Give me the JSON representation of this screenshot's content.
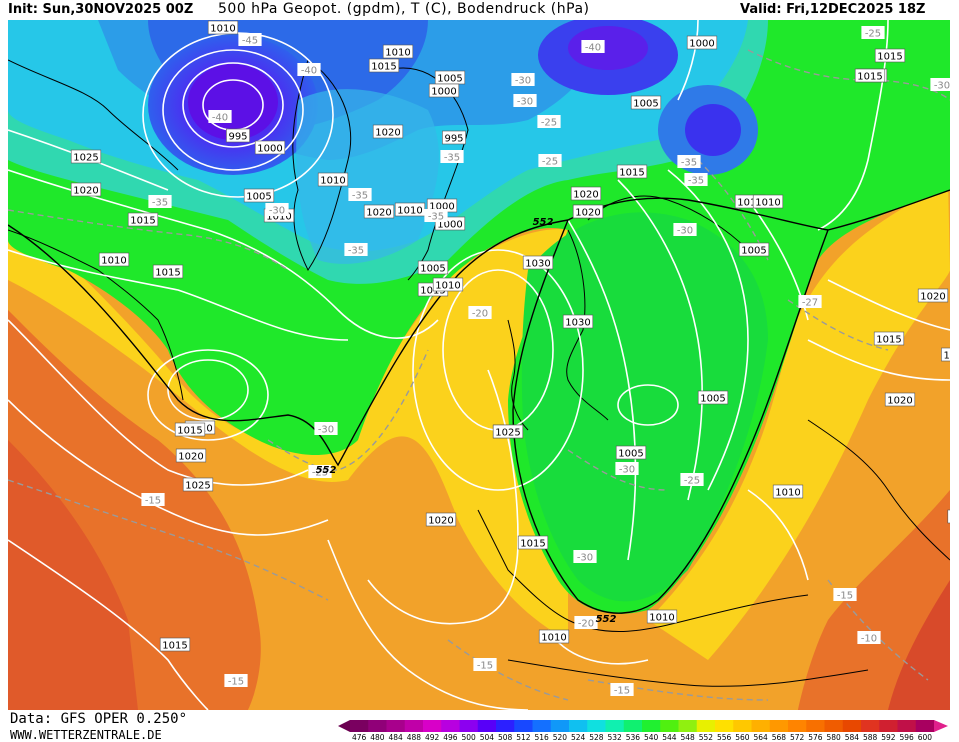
{
  "header": {
    "init": "Init: Sun,30NOV2025 00Z",
    "params": "500 hPa Geopot. (gpdm), T (C), Bodendruck (hPa)",
    "valid": "Valid: Fri,12DEC2025 18Z"
  },
  "footer": {
    "data_source": "Data: GFS OPER 0.250°",
    "website": "WWW.WETTERZENTRALE.DE"
  },
  "colors": {
    "ocean_orange": "#f2a22a",
    "deep_orange": "#e2622a",
    "yellow": "#fbd21c",
    "green": "#1fe82a",
    "cyan": "#26c7e8",
    "blue": "#2c7de8",
    "purple": "#7a28e0"
  },
  "legend": {
    "values": [
      "476",
      "480",
      "484",
      "488",
      "492",
      "496",
      "500",
      "504",
      "508",
      "512",
      "516",
      "520",
      "524",
      "528",
      "532",
      "536",
      "540",
      "544",
      "548",
      "552",
      "556",
      "560",
      "564",
      "568",
      "572",
      "576",
      "580",
      "584",
      "588",
      "592",
      "596",
      "600"
    ],
    "colors": [
      "#7a0060",
      "#900078",
      "#a8008c",
      "#c000a8",
      "#d800c8",
      "#b800e0",
      "#8c00f0",
      "#5800f8",
      "#2c20ff",
      "#1848ff",
      "#1470ff",
      "#1098f8",
      "#10c0f0",
      "#10e0e0",
      "#10f0b0",
      "#10f070",
      "#20f030",
      "#50f010",
      "#90f010",
      "#e8f000",
      "#ffe000",
      "#ffc800",
      "#ffb000",
      "#ff9800",
      "#ff8400",
      "#f87000",
      "#f05c00",
      "#e84800",
      "#e03420",
      "#d02030",
      "#c01048",
      "#a80060"
    ]
  },
  "map": {
    "pressure_labels": [
      {
        "text": "1010"
      },
      {
        "text": "1010"
      },
      {
        "text": "1015"
      },
      {
        "text": "1005"
      },
      {
        "text": "1000"
      },
      {
        "text": "995"
      },
      {
        "text": "1000"
      },
      {
        "text": "1020"
      },
      {
        "text": "995"
      },
      {
        "text": "1000"
      },
      {
        "text": "1025"
      },
      {
        "text": "1020"
      },
      {
        "text": "1015"
      },
      {
        "text": "1010"
      },
      {
        "text": "1015"
      },
      {
        "text": "1005"
      },
      {
        "text": "1010"
      },
      {
        "text": "1010"
      },
      {
        "text": "1020"
      },
      {
        "text": "1010"
      },
      {
        "text": "1000"
      },
      {
        "text": "1005"
      },
      {
        "text": "1010"
      },
      {
        "text": "1015"
      },
      {
        "text": "1030"
      },
      {
        "text": "1030"
      },
      {
        "text": "1020"
      },
      {
        "text": "1025"
      },
      {
        "text": "1015"
      },
      {
        "text": "1010"
      },
      {
        "text": "1010"
      },
      {
        "text": "1005"
      },
      {
        "text": "1005"
      },
      {
        "text": "1005"
      },
      {
        "text": "1010"
      },
      {
        "text": "1015"
      },
      {
        "text": "1020"
      },
      {
        "text": "1025"
      },
      {
        "text": "1010"
      },
      {
        "text": "1015"
      },
      {
        "text": "1020"
      },
      {
        "text": "1025"
      },
      {
        "text": "1020"
      },
      {
        "text": "1015"
      },
      {
        "text": "1010"
      },
      {
        "text": "1005"
      },
      {
        "text": "1020"
      },
      {
        "text": "1015"
      },
      {
        "text": "1020"
      },
      {
        "text": "1010"
      },
      {
        "text": "1015"
      },
      {
        "text": "1000"
      },
      {
        "text": "1020"
      },
      {
        "text": "1025"
      },
      {
        "text": "1015"
      },
      {
        "text": "1"
      },
      {
        "text": "102"
      }
    ],
    "temperature_labels": [
      {
        "text": "-45"
      },
      {
        "text": "-40"
      },
      {
        "text": "-40"
      },
      {
        "text": "-35"
      },
      {
        "text": "-40"
      },
      {
        "text": "-30"
      },
      {
        "text": "-25"
      },
      {
        "text": "-35"
      },
      {
        "text": "-35"
      },
      {
        "text": "-35"
      },
      {
        "text": "-30"
      },
      {
        "text": "-35"
      },
      {
        "text": "-30"
      },
      {
        "text": "-35"
      },
      {
        "text": "-25"
      },
      {
        "text": "-30"
      },
      {
        "text": "-20"
      },
      {
        "text": "-30"
      },
      {
        "text": "-25"
      },
      {
        "text": "-15"
      },
      {
        "text": "-30"
      },
      {
        "text": "-25"
      },
      {
        "text": "-30"
      },
      {
        "text": "-20"
      },
      {
        "text": "-15"
      },
      {
        "text": "-15"
      },
      {
        "text": "-15"
      },
      {
        "text": "-15"
      },
      {
        "text": "-10"
      },
      {
        "text": "-27"
      },
      {
        "text": "-35"
      },
      {
        "text": "-25"
      },
      {
        "text": "-30"
      }
    ],
    "geopotential_labels": [
      {
        "text": "552"
      },
      {
        "text": "552"
      },
      {
        "text": "552"
      }
    ]
  }
}
